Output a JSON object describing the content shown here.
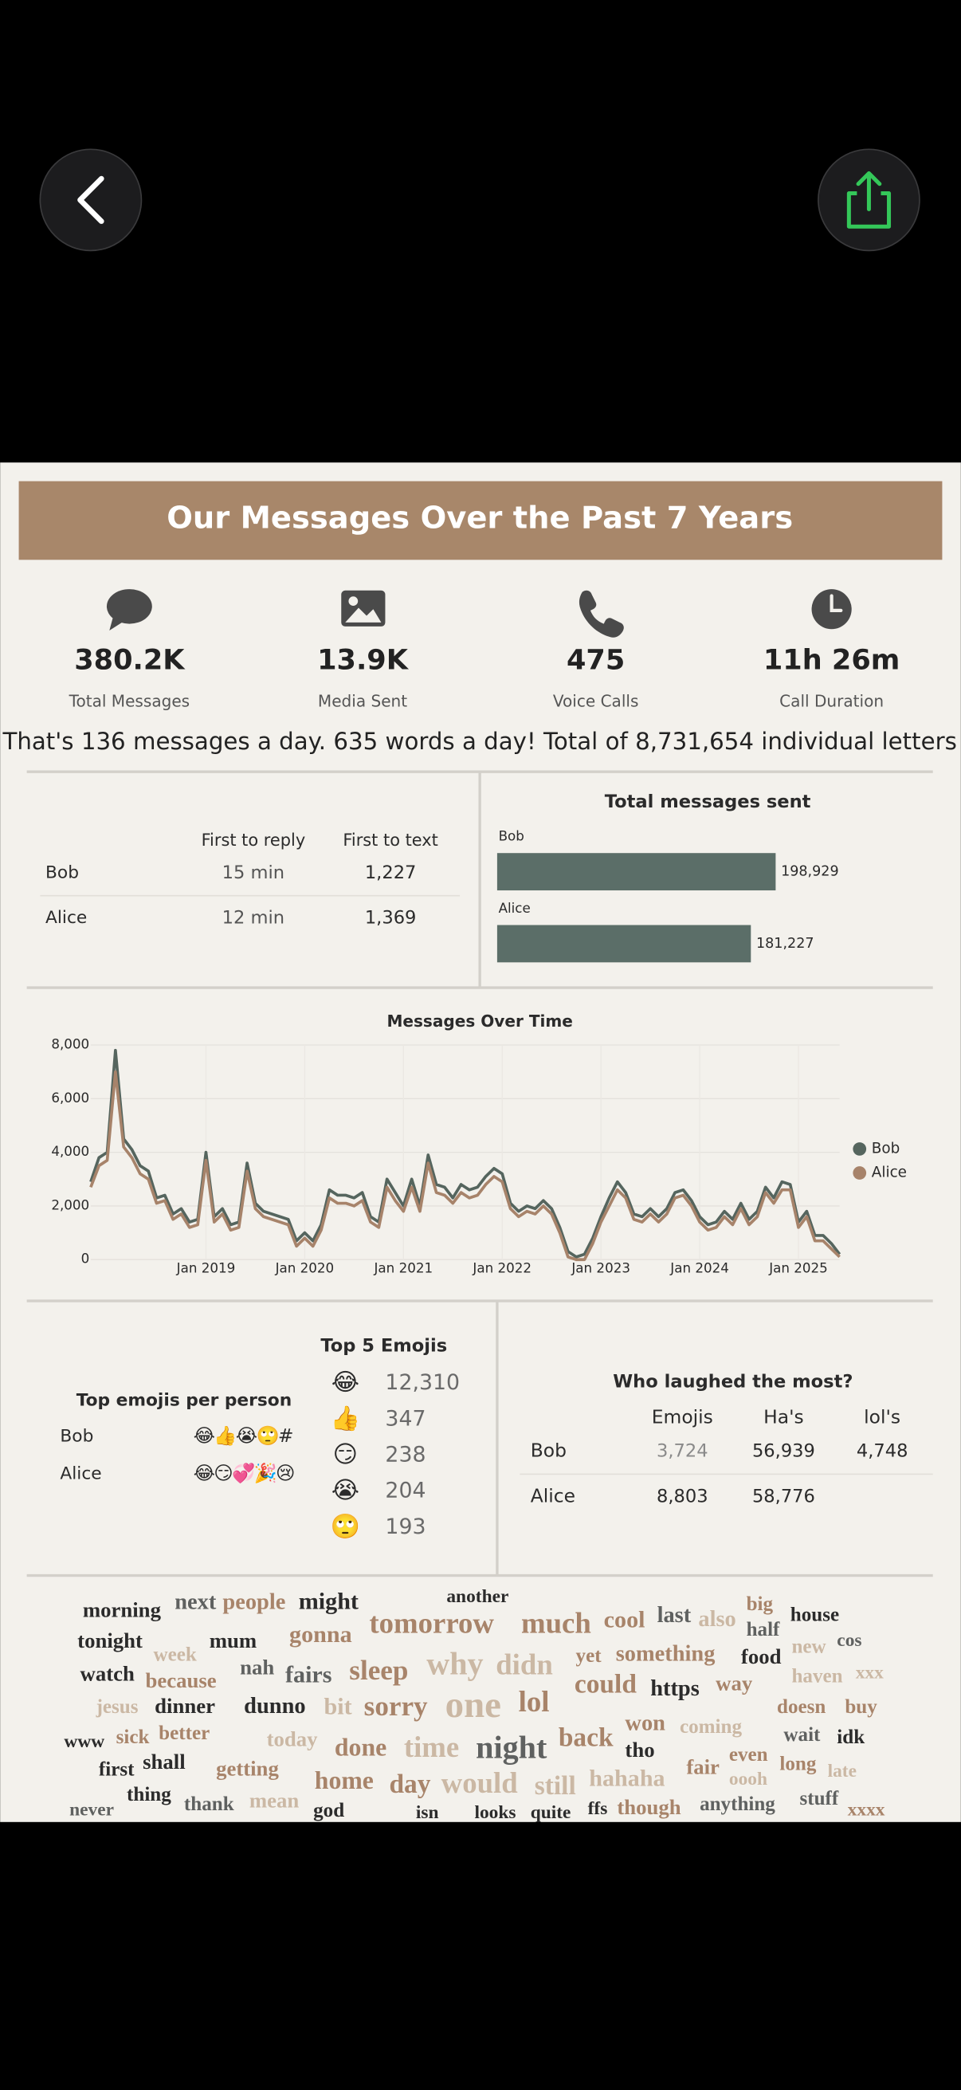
{
  "header": {
    "title": "Our Messages Over the Past 7 Years"
  },
  "stats": [
    {
      "value": "380.2K",
      "label": "Total Messages"
    },
    {
      "value": "13.9K",
      "label": "Media Sent"
    },
    {
      "value": "475",
      "label": "Voice Calls"
    },
    {
      "value": "11h 26m",
      "label": "Call Duration"
    }
  ],
  "summary": "That's 136 messages a day. 635 words a day! Total of 8,731,654 individual letters",
  "reply_table": {
    "columns": [
      "First to reply",
      "First to text"
    ],
    "rows": [
      [
        "Bob",
        "15 min",
        "1,227"
      ],
      [
        "Alice",
        "12 min",
        "1,369"
      ]
    ]
  },
  "chart_data": [
    {
      "type": "bar",
      "orientation": "horizontal",
      "title": "Total messages sent",
      "categories": [
        "Bob",
        "Alice"
      ],
      "values": [
        198929,
        181227
      ],
      "value_labels": [
        "198,929",
        "181,227"
      ],
      "color": "#5b6e68"
    },
    {
      "type": "line",
      "title": "Messages Over Time",
      "x": [
        "2017-11",
        "2017-12",
        "2018-01",
        "2018-02",
        "2018-03",
        "2018-04",
        "2018-05",
        "2018-06",
        "2018-07",
        "2018-08",
        "2018-09",
        "2018-10",
        "2018-11",
        "2018-12",
        "2019-01",
        "2019-02",
        "2019-03",
        "2019-04",
        "2019-05",
        "2019-06",
        "2019-07",
        "2019-08",
        "2019-09",
        "2019-10",
        "2019-11",
        "2019-12",
        "2020-01",
        "2020-02",
        "2020-03",
        "2020-04",
        "2020-05",
        "2020-06",
        "2020-07",
        "2020-08",
        "2020-09",
        "2020-10",
        "2020-11",
        "2020-12",
        "2021-01",
        "2021-02",
        "2021-03",
        "2021-04",
        "2021-05",
        "2021-06",
        "2021-07",
        "2021-08",
        "2021-09",
        "2021-10",
        "2021-11",
        "2021-12",
        "2022-01",
        "2022-02",
        "2022-03",
        "2022-04",
        "2022-05",
        "2022-06",
        "2022-07",
        "2022-08",
        "2022-09",
        "2022-10",
        "2022-11",
        "2022-12",
        "2023-01",
        "2023-02",
        "2023-03",
        "2023-04",
        "2023-05",
        "2023-06",
        "2023-07",
        "2023-08",
        "2023-09",
        "2023-10",
        "2023-11",
        "2023-12",
        "2024-01",
        "2024-02",
        "2024-03",
        "2024-04",
        "2024-05",
        "2024-06",
        "2024-07",
        "2024-08",
        "2024-09",
        "2024-10",
        "2024-11",
        "2024-12",
        "2025-01",
        "2025-02",
        "2025-03",
        "2025-04",
        "2025-05",
        "2025-06"
      ],
      "series": [
        {
          "name": "Bob",
          "color": "#55655e",
          "values": [
            2900,
            3800,
            4000,
            7800,
            4500,
            4100,
            3500,
            3300,
            2300,
            2400,
            1700,
            1900,
            1400,
            1500,
            4000,
            1600,
            1900,
            1300,
            1400,
            3600,
            2100,
            1800,
            1700,
            1600,
            1500,
            700,
            1000,
            700,
            1300,
            2600,
            2400,
            2400,
            2300,
            2500,
            1600,
            1400,
            3000,
            2500,
            2000,
            3000,
            2000,
            3900,
            2800,
            2700,
            2300,
            2800,
            2600,
            2700,
            3100,
            3400,
            3200,
            2100,
            1800,
            2000,
            1900,
            2200,
            1900,
            1200,
            300,
            100,
            200,
            800,
            1600,
            2300,
            2900,
            2500,
            1700,
            1600,
            1900,
            1600,
            1900,
            2500,
            2600,
            2200,
            1600,
            1300,
            1400,
            1800,
            1500,
            2100,
            1500,
            1800,
            2700,
            2300,
            2900,
            2800,
            1400,
            1800,
            900,
            900,
            600,
            200
          ]
        },
        {
          "name": "Alice",
          "color": "#a7836a",
          "values": [
            2700,
            3500,
            3700,
            7000,
            4200,
            3800,
            3200,
            3000,
            2100,
            2200,
            1500,
            1700,
            1200,
            1300,
            3700,
            1400,
            1700,
            1100,
            1200,
            3300,
            1900,
            1600,
            1500,
            1400,
            1300,
            500,
            800,
            500,
            1100,
            2300,
            2100,
            2100,
            2000,
            2200,
            1400,
            1200,
            2700,
            2200,
            1800,
            2700,
            1800,
            3600,
            2500,
            2400,
            2100,
            2500,
            2300,
            2400,
            2800,
            3100,
            2900,
            1900,
            1600,
            1800,
            1700,
            2000,
            1700,
            1000,
            100,
            0,
            0,
            600,
            1400,
            2000,
            2600,
            2300,
            1500,
            1400,
            1700,
            1400,
            1700,
            2300,
            2400,
            2000,
            1400,
            1100,
            1200,
            1600,
            1300,
            1900,
            1300,
            1600,
            2500,
            2100,
            2600,
            2600,
            1200,
            1600,
            700,
            700,
            400,
            100
          ]
        }
      ],
      "ylim": [
        0,
        8000
      ],
      "yticks": [
        0,
        {
          "value": 2000,
          "label": "2,000"
        },
        {
          "value": 4000,
          "label": "4,000"
        },
        {
          "value": 6000,
          "label": "6,000"
        },
        {
          "value": 8000,
          "label": "8,000"
        }
      ],
      "xticks": [
        {
          "value": "2019-01",
          "label": "Jan 2019"
        },
        {
          "value": "2020-01",
          "label": "Jan 2020"
        },
        {
          "value": "2021-01",
          "label": "Jan 2021"
        },
        {
          "value": "2022-01",
          "label": "Jan 2022"
        },
        {
          "value": "2023-01",
          "label": "Jan 2023"
        },
        {
          "value": "2024-01",
          "label": "Jan 2024"
        },
        {
          "value": "2025-01",
          "label": "Jan 2025"
        }
      ],
      "grid": true,
      "legend": "right"
    }
  ],
  "emojis_per_person": {
    "title": "Top emojis per person",
    "rows": [
      [
        "Bob",
        "😂👍😭🙄#"
      ],
      [
        "Alice",
        "😂😏💞🎉😢"
      ]
    ]
  },
  "top_emojis": {
    "title": "Top 5 Emojis",
    "rows": [
      [
        "😂",
        "12,310"
      ],
      [
        "👍",
        "347"
      ],
      [
        "😏",
        "238"
      ],
      [
        "😭",
        "204"
      ],
      [
        "🙄",
        "193"
      ]
    ]
  },
  "laughed": {
    "title": "Who laughed the most?",
    "columns": [
      "Emojis",
      "Ha's",
      "lol's"
    ],
    "rows": [
      [
        "Bob",
        "3,724",
        "56,939",
        "4,748"
      ],
      [
        "Alice",
        "8,803",
        "58,776"
      ]
    ]
  },
  "word_cloud": [
    "morning",
    "next",
    "people",
    "might",
    "another",
    "tomorrow",
    "much",
    "cool",
    "last",
    "also",
    "big",
    "house",
    "half",
    "cos",
    "new",
    "tonight",
    "mum",
    "gonna",
    "week",
    "nah",
    "fairs",
    "sleep",
    "why",
    "didn",
    "yet",
    "something",
    "food",
    "haven",
    "xxx",
    "watch",
    "because",
    "could",
    "https",
    "way",
    "jesus",
    "dinner",
    "dunno",
    "bit",
    "sorry",
    "one",
    "lol",
    "doesn",
    "buy",
    "www",
    "sick",
    "better",
    "today",
    "done",
    "time",
    "night",
    "back",
    "won",
    "coming",
    "wait",
    "idk",
    "tho",
    "even",
    "long",
    "late",
    "first",
    "shall",
    "getting",
    "fair",
    "oooh",
    "home",
    "day",
    "would",
    "still",
    "hahaha",
    "thing",
    "thank",
    "mean",
    "god",
    "never",
    "isn",
    "looks",
    "quite",
    "ffs",
    "though",
    "anything",
    "stuff",
    "xxxx"
  ]
}
